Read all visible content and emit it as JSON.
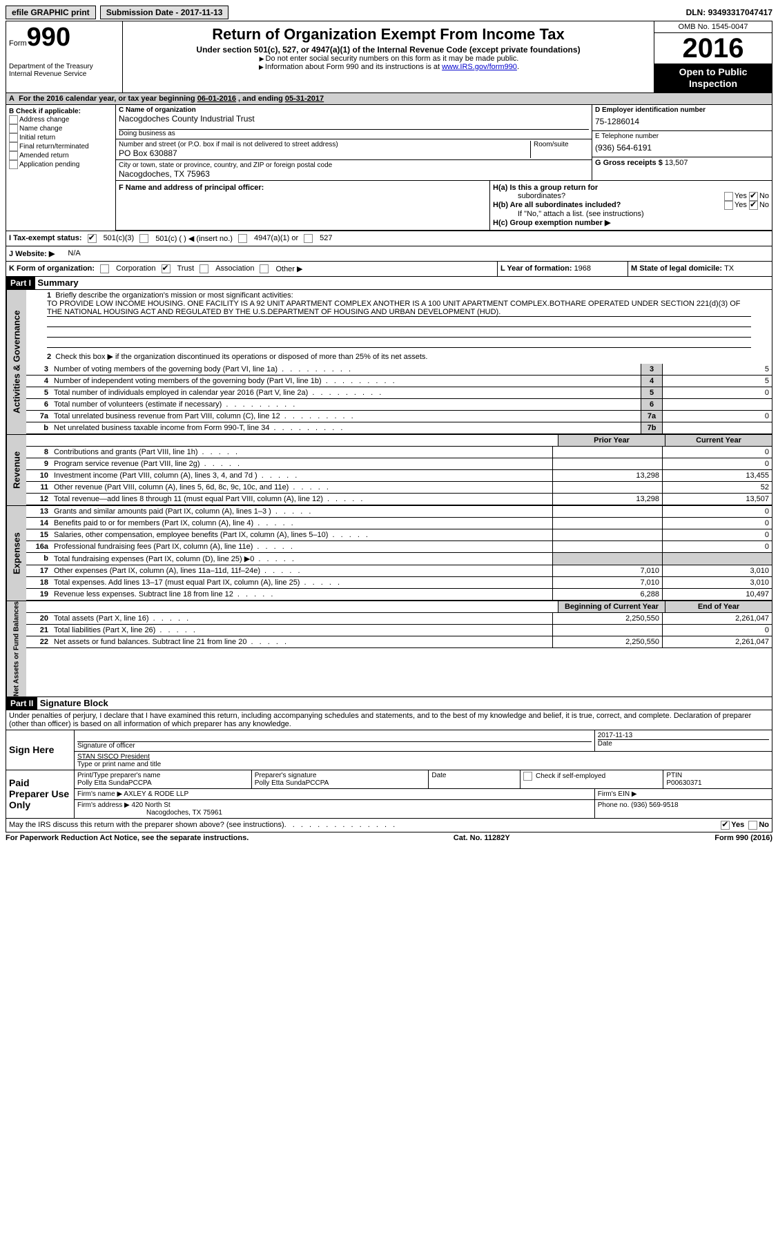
{
  "topbar": {
    "efile": "efile GRAPHIC print",
    "submission_label": "Submission Date - ",
    "submission_date": "2017-11-13",
    "dln_label": "DLN: ",
    "dln": "93493317047417"
  },
  "header": {
    "form_word": "Form",
    "form_no": "990",
    "dept1": "Department of the Treasury",
    "dept2": "Internal Revenue Service",
    "title": "Return of Organization Exempt From Income Tax",
    "subtitle": "Under section 501(c), 527, or 4947(a)(1) of the Internal Revenue Code (except private foundations)",
    "note1": "Do not enter social security numbers on this form as it may be made public.",
    "note2_a": "Information about Form 990 and its instructions is at ",
    "note2_link": "www.IRS.gov/form990",
    "omb": "OMB No. 1545-0047",
    "year": "2016",
    "public1": "Open to Public",
    "public2": "Inspection"
  },
  "rowA": {
    "prefix": "A",
    "text": "For the 2016 calendar year, or tax year beginning ",
    "begin": "06-01-2016",
    "mid": " , and ending ",
    "end": "05-31-2017"
  },
  "boxB": {
    "title": "B Check if applicable:",
    "items": [
      "Address change",
      "Name change",
      "Initial return",
      "Final return/terminated",
      "Amended return",
      "Application pending"
    ]
  },
  "boxC": {
    "name_label": "C Name of organization",
    "name": "Nacogdoches County Industrial Trust",
    "dba_label": "Doing business as",
    "addr_label": "Number and street (or P.O. box if mail is not delivered to street address)",
    "room_label": "Room/suite",
    "addr": "PO Box 630887",
    "city_label": "City or town, state or province, country, and ZIP or foreign postal code",
    "city": "Nacogdoches, TX  75963"
  },
  "boxD": {
    "label": "D Employer identification number",
    "value": "75-1286014"
  },
  "boxE": {
    "label": "E Telephone number",
    "value": "(936) 564-6191"
  },
  "boxG": {
    "label": "G Gross receipts $ ",
    "value": "13,507"
  },
  "boxF": {
    "label": "F  Name and address of principal officer:"
  },
  "boxH": {
    "a": "H(a)  Is this a group return for",
    "a2": "subordinates?",
    "b": "H(b)  Are all subordinates included?",
    "bnote": "If \"No,\" attach a list. (see instructions)",
    "c": "H(c)  Group exemption number ▶",
    "yes": "Yes",
    "no": "No"
  },
  "rowI": {
    "label": "I  Tax-exempt status:",
    "o1": "501(c)(3)",
    "o2": "501(c) (   ) ◀ (insert no.)",
    "o3": "4947(a)(1) or",
    "o4": "527"
  },
  "rowJ": {
    "label": "J  Website: ▶",
    "value": "N/A"
  },
  "rowK": {
    "label": "K Form of organization:",
    "o1": "Corporation",
    "o2": "Trust",
    "o3": "Association",
    "o4": "Other ▶"
  },
  "rowL": {
    "label": "L Year of formation: ",
    "value": "1968"
  },
  "rowM": {
    "label": "M State of legal domicile: ",
    "value": "TX"
  },
  "part1": {
    "header": "Part I",
    "title": "Summary",
    "vtab_ag": "Activities & Governance",
    "vtab_rev": "Revenue",
    "vtab_exp": "Expenses",
    "vtab_na": "Net Assets or Fund Balances",
    "l1_label": "Briefly describe the organization's mission or most significant activities:",
    "l1_text": "TO PROVIDE LOW INCOME HOUSING. ONE FACILITY IS A 92 UNIT APARTMENT COMPLEX ANOTHER IS A 100 UNIT APARTMENT COMPLEX.BOTHARE OPERATED UNDER SECTION 221(d)(3) OF THE NATIONAL HOUSING ACT AND REGULATED BY THE U.S.DEPARTMENT OF HOUSING AND URBAN DEVELOPMENT (HUD).",
    "l2": "Check this box ▶       if the organization discontinued its operations or disposed of more than 25% of its net assets.",
    "lines_ag": [
      {
        "no": "3",
        "text": "Number of voting members of the governing body (Part VI, line 1a)",
        "box": "3",
        "val": "5"
      },
      {
        "no": "4",
        "text": "Number of independent voting members of the governing body (Part VI, line 1b)",
        "box": "4",
        "val": "5"
      },
      {
        "no": "5",
        "text": "Total number of individuals employed in calendar year 2016 (Part V, line 2a)",
        "box": "5",
        "val": "0"
      },
      {
        "no": "6",
        "text": "Total number of volunteers (estimate if necessary)",
        "box": "6",
        "val": ""
      },
      {
        "no": "7a",
        "text": "Total unrelated business revenue from Part VIII, column (C), line 12",
        "box": "7a",
        "val": "0"
      },
      {
        "no": "b",
        "text": "Net unrelated business taxable income from Form 990-T, line 34",
        "box": "7b",
        "val": ""
      }
    ],
    "col_prior": "Prior Year",
    "col_current": "Current Year",
    "lines_rev": [
      {
        "no": "8",
        "text": "Contributions and grants (Part VIII, line 1h)",
        "p": "",
        "c": "0"
      },
      {
        "no": "9",
        "text": "Program service revenue (Part VIII, line 2g)",
        "p": "",
        "c": "0"
      },
      {
        "no": "10",
        "text": "Investment income (Part VIII, column (A), lines 3, 4, and 7d )",
        "p": "13,298",
        "c": "13,455"
      },
      {
        "no": "11",
        "text": "Other revenue (Part VIII, column (A), lines 5, 6d, 8c, 9c, 10c, and 11e)",
        "p": "",
        "c": "52"
      },
      {
        "no": "12",
        "text": "Total revenue—add lines 8 through 11 (must equal Part VIII, column (A), line 12)",
        "p": "13,298",
        "c": "13,507"
      }
    ],
    "lines_exp": [
      {
        "no": "13",
        "text": "Grants and similar amounts paid (Part IX, column (A), lines 1–3 )",
        "p": "",
        "c": "0"
      },
      {
        "no": "14",
        "text": "Benefits paid to or for members (Part IX, column (A), line 4)",
        "p": "",
        "c": "0"
      },
      {
        "no": "15",
        "text": "Salaries, other compensation, employee benefits (Part IX, column (A), lines 5–10)",
        "p": "",
        "c": "0"
      },
      {
        "no": "16a",
        "text": "Professional fundraising fees (Part IX, column (A), line 11e)",
        "p": "",
        "c": "0"
      },
      {
        "no": "b",
        "text": "Total fundraising expenses (Part IX, column (D), line 25) ▶0",
        "p": "shaded",
        "c": "shaded"
      },
      {
        "no": "17",
        "text": "Other expenses (Part IX, column (A), lines 11a–11d, 11f–24e)",
        "p": "7,010",
        "c": "3,010"
      },
      {
        "no": "18",
        "text": "Total expenses. Add lines 13–17 (must equal Part IX, column (A), line 25)",
        "p": "7,010",
        "c": "3,010"
      },
      {
        "no": "19",
        "text": "Revenue less expenses. Subtract line 18 from line 12",
        "p": "6,288",
        "c": "10,497"
      }
    ],
    "col_begin": "Beginning of Current Year",
    "col_end": "End of Year",
    "lines_na": [
      {
        "no": "20",
        "text": "Total assets (Part X, line 16)",
        "p": "2,250,550",
        "c": "2,261,047"
      },
      {
        "no": "21",
        "text": "Total liabilities (Part X, line 26)",
        "p": "",
        "c": "0"
      },
      {
        "no": "22",
        "text": "Net assets or fund balances. Subtract line 21 from line 20",
        "p": "2,250,550",
        "c": "2,261,047"
      }
    ]
  },
  "part2": {
    "header": "Part II",
    "title": "Signature Block",
    "perjury": "Under penalties of perjury, I declare that I have examined this return, including accompanying schedules and statements, and to the best of my knowledge and belief, it is true, correct, and complete. Declaration of preparer (other than officer) is based on all information of which preparer has any knowledge.",
    "sign_here": "Sign Here",
    "sig_officer": "Signature of officer",
    "sig_date": "2017-11-13",
    "date_label": "Date",
    "officer_name": "STAN SISCO President",
    "officer_type": "Type or print name and title",
    "paid": "Paid Preparer Use Only",
    "prep_name_label": "Print/Type preparer's name",
    "prep_name": "Polly Etta SundaPCCPA",
    "prep_sig_label": "Preparer's signature",
    "prep_sig": "Polly Etta SundaPCCPA",
    "prep_date_label": "Date",
    "check_if": "Check         if self-employed",
    "ptin_label": "PTIN",
    "ptin": "P00630371",
    "firm_name_label": "Firm's name    ▶",
    "firm_name": "AXLEY & RODE LLP",
    "firm_ein_label": "Firm's EIN ▶",
    "firm_addr_label": "Firm's address ▶",
    "firm_addr": "420 North St",
    "firm_city": "Nacogdoches, TX  75961",
    "phone_label": "Phone no. ",
    "phone": "(936) 569-9518",
    "discuss": "May the IRS discuss this return with the preparer shown above? (see instructions)",
    "yes": "Yes",
    "no": "No"
  },
  "footer": {
    "left": "For Paperwork Reduction Act Notice, see the separate instructions.",
    "mid": "Cat. No. 11282Y",
    "right": "Form 990 (2016)"
  }
}
